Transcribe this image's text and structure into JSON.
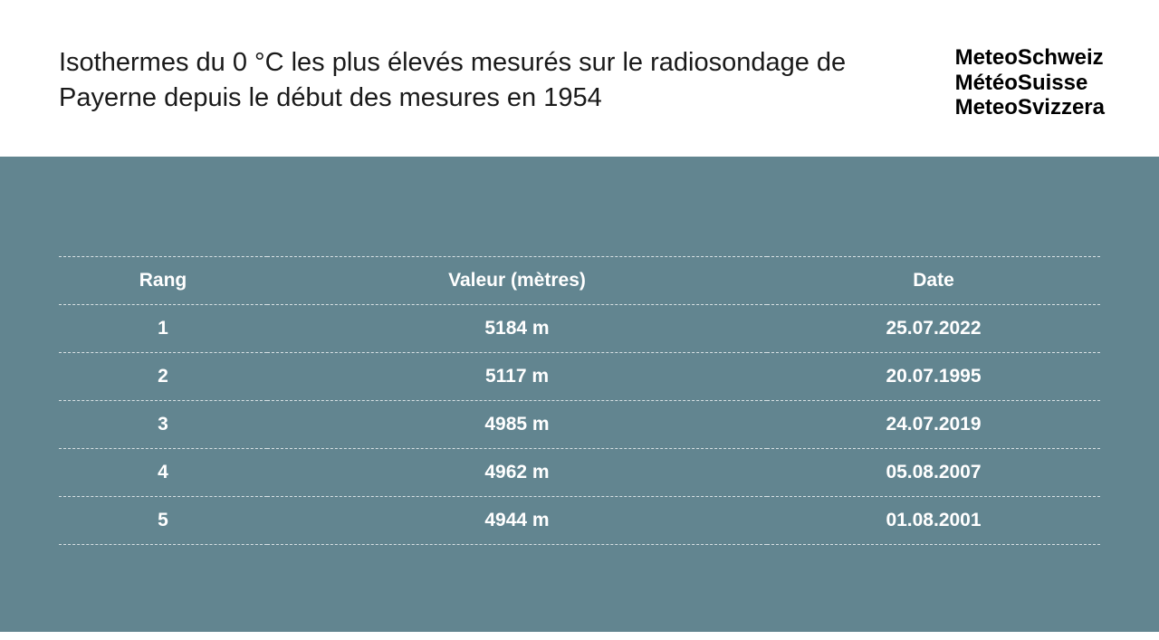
{
  "header": {
    "title": "Isothermes du 0 °C les plus élevés mesurés sur le radiosondage de Payerne depuis le début des mesures en 1954",
    "logo_lines": [
      "MeteoSchweiz",
      "MétéoSuisse",
      "MeteoSvizzera"
    ]
  },
  "table": {
    "type": "table",
    "background_color": "#628590",
    "text_color": "#ffffff",
    "border_style": "dashed",
    "border_color": "rgba(255,255,255,0.75)",
    "header_fontsize": 21,
    "cell_fontsize": 21,
    "font_weight": 700,
    "columns": [
      "Rang",
      "Valeur (mètres)",
      "Date"
    ],
    "column_widths_pct": [
      20,
      48,
      32
    ],
    "rows": [
      [
        "1",
        "5184 m",
        "25.07.2022"
      ],
      [
        "2",
        "5117 m",
        "20.07.1995"
      ],
      [
        "3",
        "4985 m",
        "24.07.2019"
      ],
      [
        "4",
        "4962 m",
        "05.08.2007"
      ],
      [
        "5",
        "4944 m",
        "01.08.2001"
      ]
    ]
  }
}
